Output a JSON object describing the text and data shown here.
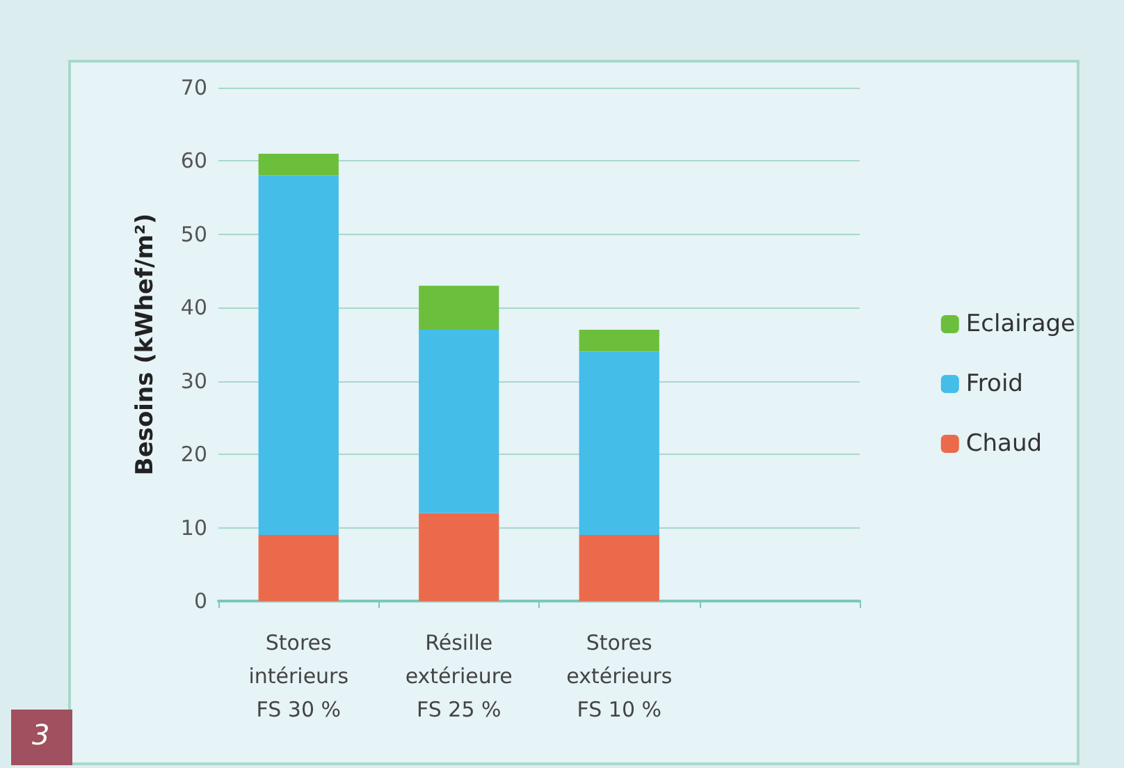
{
  "chart_data": {
    "type": "bar",
    "stacked": true,
    "ylabel": "Besoins (kWhef/m²)",
    "categories": [
      "Stores\nintérieurs\nFS 30 %",
      "Résille\nextérieure\nFS 25 %",
      "Stores\nextérieurs\nFS 10 %",
      null
    ],
    "series": [
      {
        "name": "Chaud",
        "color": "#ec6a4c",
        "values": [
          9,
          12,
          9,
          null
        ]
      },
      {
        "name": "Froid",
        "color": "#45bde9",
        "values": [
          49,
          25,
          25,
          null
        ]
      },
      {
        "name": "Eclairage",
        "color": "#6cbf3c",
        "values": [
          3,
          6,
          3,
          null
        ]
      }
    ],
    "ylim": [
      0,
      70
    ],
    "yticks": [
      0,
      10,
      20,
      30,
      40,
      50,
      60,
      70
    ],
    "grid": "y",
    "legend": "right",
    "annotations": [
      "3"
    ]
  }
}
